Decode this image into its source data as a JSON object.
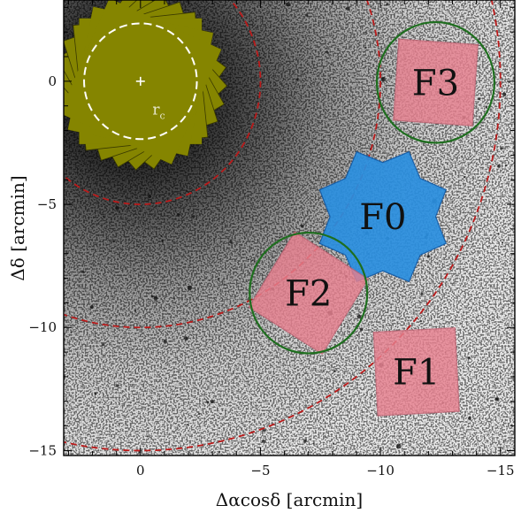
{
  "chart_data": {
    "type": "scatter",
    "title": "",
    "xlabel": "Δαcosδ [arcmin]",
    "ylabel": "Δδ [arcmin]",
    "xlim": [
      3.2,
      -15.6
    ],
    "ylim": [
      -15.2,
      3.3
    ],
    "x_inverted": true,
    "grid": false,
    "xticks": [
      0,
      -5,
      -10,
      -15
    ],
    "yticks": [
      0,
      -5,
      -10,
      -15
    ],
    "x_tick_labels": [
      "0",
      "−5",
      "−10",
      "−15"
    ],
    "y_tick_labels": [
      "0",
      "−5",
      "−10",
      "−15"
    ],
    "background": "grayscale star-field image, densest around the cluster centre at (0, 0)",
    "center_marker": {
      "x": 0,
      "y": 0,
      "symbol": "+"
    },
    "core_region": {
      "name": "r_c",
      "label_main": "r",
      "label_sub": "c",
      "label_x": -0.5,
      "label_y": -1.35,
      "center": [
        0,
        0
      ],
      "radius": 2.35,
      "style": "white dashed circle",
      "color": "#ffffff",
      "footprint_fill": "#858500",
      "footprint_edge": "#3a3a00",
      "footprint_shape": "overlapping rotated squares",
      "square_half_side": 2.55,
      "square_rotations_deg": [
        0,
        12,
        24,
        36,
        48,
        60,
        72,
        84
      ]
    },
    "radial_circles": {
      "center": [
        0,
        0
      ],
      "radii": [
        5.0,
        10.0,
        15.0
      ],
      "style": "dashed",
      "color": "#bb1a1a"
    },
    "fields": [
      {
        "name": "F0",
        "center": [
          -10.1,
          -5.5
        ],
        "shape": "8-point star",
        "outer_radius": 2.85,
        "inner_radius": 2.2,
        "rotation_deg": 22.5,
        "fill": "#2a8fe0",
        "edge": "#0f5aa8"
      },
      {
        "name": "F1",
        "center": [
          -11.5,
          -11.8
        ],
        "shape": "rotated square",
        "half_side": 1.7,
        "rotation_deg": -3,
        "fill": "#e8808f",
        "edge": "#c06070"
      },
      {
        "name": "F2",
        "center": [
          -7.0,
          -8.6
        ],
        "shape": "rotated square",
        "half_side": 1.8,
        "rotation_deg": 32,
        "fill": "#e8808f",
        "edge": "#c06070"
      },
      {
        "name": "F3",
        "center": [
          -12.3,
          -0.05
        ],
        "shape": "rotated square",
        "half_side": 1.65,
        "rotation_deg": 4,
        "fill": "#e8808f",
        "edge": "#c06070"
      }
    ],
    "green_circles": [
      {
        "around": "F2",
        "center": [
          -7.0,
          -8.6
        ],
        "radius": 2.45
      },
      {
        "around": "F3",
        "center": [
          -12.3,
          -0.05
        ],
        "radius": 2.45
      }
    ],
    "green_circle_color": "#1e6e1e"
  }
}
